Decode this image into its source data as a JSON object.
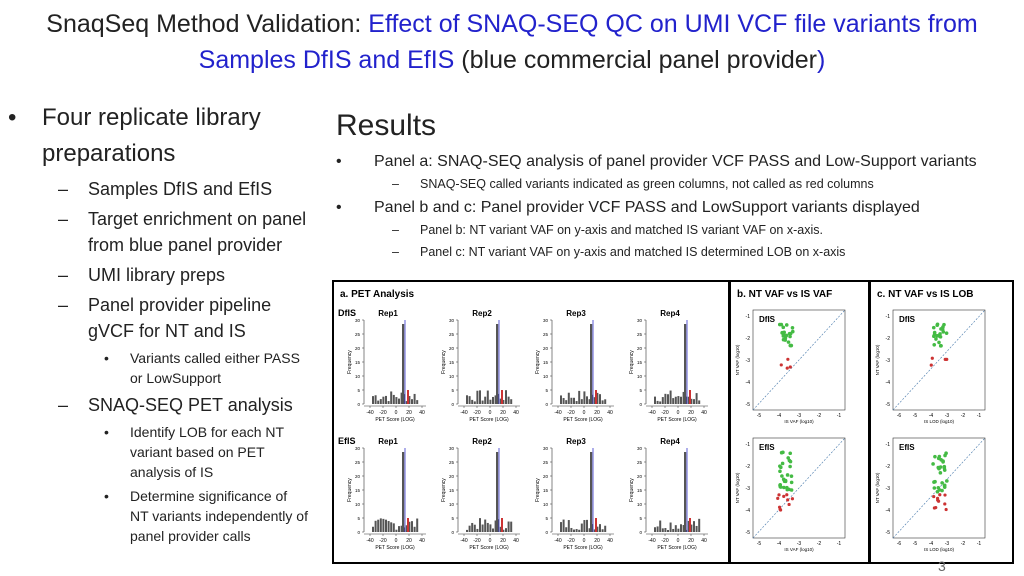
{
  "title": {
    "part1": "SnaqSeq Method Validation: ",
    "part2": "Effect of SNAQ-SEQ QC on UMI VCF file variants from Samples DfIS and EfIS",
    "part3": " (blue commercial panel provider",
    "part4": ")"
  },
  "left": {
    "bullet": "•",
    "dash": "–",
    "item1": "Four replicate library preparations",
    "sub1": "Samples DfIS and EfIS",
    "sub2": "Target enrichment on panel from blue panel provider",
    "sub3": "UMI library preps",
    "sub4": "Panel provider pipeline gVCF for NT and IS",
    "sub4_1": "Variants called either PASS or LowSupport",
    "sub5": "SNAQ-SEQ PET analysis",
    "sub5_1": "Identify LOB for each NT variant based on PET analysis of IS",
    "sub5_2": "Determine significance of NT variants independently of panel provider calls"
  },
  "right": {
    "heading": "Results",
    "b1": "Panel a: SNAQ-SEQ analysis of panel provider VCF PASS and Low-Support variants",
    "b1_1": "SNAQ-SEQ called variants indicated as green columns, not called as red columns",
    "b2": "Panel b and c: Panel provider VCF PASS and LowSupport variants displayed",
    "b2_1": "Panel b: NT variant VAF on y-axis and matched IS variant VAF on x-axis.",
    "b2_2": "Panel c: NT variant VAF on y-axis and matched IS determined LOB on x-axis"
  },
  "panel_a": {
    "title": "a. PET Analysis",
    "rows": [
      "DfIS",
      "EfIS"
    ],
    "reps": [
      "Rep1",
      "Rep2",
      "Rep3",
      "Rep4"
    ],
    "ylabel": "Frequency",
    "xlabel": "PET Score (LOG)",
    "yticks": [
      "0",
      "5",
      "10",
      "15",
      "20",
      "25",
      "30"
    ],
    "xticks": [
      "-40",
      "-20",
      "0",
      "20",
      "40"
    ],
    "colors": {
      "hist": "#555555",
      "line": "#3333cc",
      "red": "#cc3333"
    }
  },
  "panel_b": {
    "title": "b.   NT VAF vs IS VAF",
    "samples": [
      "DfIS",
      "EfIS"
    ],
    "ylabel": "NT VAF (log10)",
    "xlabel": "IS VAF (log10)",
    "xticks": [
      "-5",
      "-4",
      "-3",
      "-2",
      "-1"
    ],
    "yticks": [
      "-1",
      "-2",
      "-3",
      "-4",
      "-5"
    ]
  },
  "panel_c": {
    "title": "c.   NT VAF vs IS LOB",
    "samples": [
      "DfIS",
      "EfIS"
    ],
    "ylabel": "NT VAF (log10)",
    "xlabel": "IS LOD (log10)",
    "xticks": [
      "-6",
      "-5",
      "-4",
      "-3",
      "-2",
      "-1"
    ],
    "yticks": [
      "-1",
      "-2",
      "-3",
      "-4",
      "-5"
    ]
  },
  "page_number": "3"
}
